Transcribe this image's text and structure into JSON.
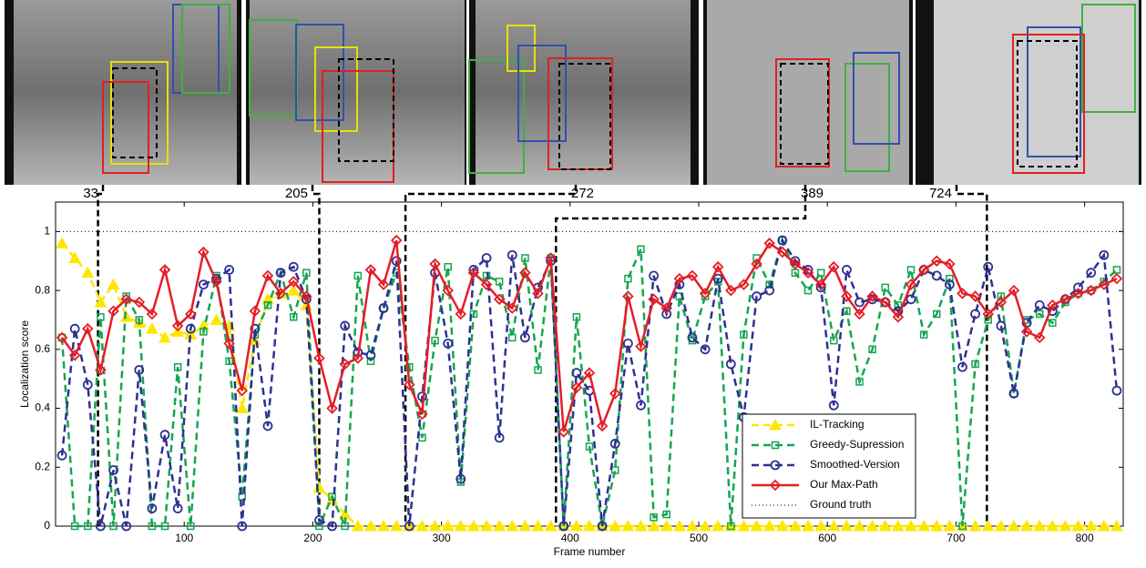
{
  "chart_data": {
    "type": "line",
    "xlabel": "Frame number",
    "ylabel": "Localization score",
    "x": [
      5,
      15,
      25,
      35,
      45,
      55,
      65,
      75,
      85,
      95,
      105,
      115,
      125,
      135,
      145,
      155,
      165,
      175,
      185,
      195,
      205,
      215,
      225,
      235,
      245,
      255,
      265,
      275,
      285,
      295,
      305,
      315,
      325,
      335,
      345,
      355,
      365,
      375,
      385,
      395,
      405,
      415,
      425,
      435,
      445,
      455,
      465,
      475,
      485,
      495,
      505,
      515,
      525,
      535,
      545,
      555,
      565,
      575,
      585,
      595,
      605,
      615,
      625,
      635,
      645,
      655,
      665,
      675,
      685,
      695,
      705,
      715,
      725,
      735,
      745,
      755,
      765,
      775,
      785,
      795,
      805,
      815,
      825
    ],
    "xlim": [
      0,
      830
    ],
    "ylim": [
      0,
      1.1
    ],
    "xticks": [
      100,
      200,
      300,
      400,
      500,
      600,
      700,
      800
    ],
    "yticks": [
      0,
      0.2,
      0.4,
      0.6,
      0.8,
      1
    ],
    "legend": "lower right",
    "frame_markers": [
      33,
      205,
      272,
      389,
      724
    ],
    "ground_truth": {
      "name": "Ground truth",
      "value": 1,
      "color": "#000000"
    },
    "series": [
      {
        "name": "IL-Tracking",
        "color": "#ffe600",
        "marker": "triangle",
        "dashed": true,
        "values": [
          0.96,
          0.91,
          0.86,
          0.76,
          0.82,
          0.71,
          0.69,
          0.67,
          0.64,
          0.66,
          0.65,
          0.68,
          0.7,
          0.68,
          0.4,
          0.63,
          0.77,
          0.79,
          0.8,
          0.75,
          0.13,
          0.09,
          0.04,
          0,
          0,
          0,
          0,
          0,
          0,
          0,
          0,
          0,
          0,
          0,
          0,
          0,
          0,
          0,
          0,
          0,
          0,
          0,
          0,
          0,
          0,
          0,
          0,
          0,
          0,
          0,
          0,
          0,
          0,
          0,
          0,
          0,
          0,
          0,
          0,
          0,
          0,
          0,
          0,
          0,
          0,
          0,
          0,
          0,
          0,
          0,
          0,
          0,
          0,
          0,
          0,
          0,
          0,
          0,
          0,
          0,
          0,
          0,
          0
        ]
      },
      {
        "name": "Greedy-Supression",
        "color": "#14a651",
        "marker": "square",
        "dashed": true,
        "values": [
          0.64,
          0,
          0,
          0.71,
          0,
          0.78,
          0.7,
          0,
          0,
          0.54,
          0,
          0.66,
          0.85,
          0.56,
          0.1,
          0.65,
          0.75,
          0.86,
          0.71,
          0.86,
          0,
          0.1,
          0,
          0.85,
          0.56,
          0.74,
          0.86,
          0.54,
          0.3,
          0.63,
          0.88,
          0.15,
          0.72,
          0.85,
          0.83,
          0.64,
          0.91,
          0.53,
          0.91,
          0,
          0.71,
          0.27,
          0,
          0.19,
          0.84,
          0.94,
          0.03,
          0.04,
          0.78,
          0.63,
          0.78,
          0.83,
          0,
          0.65,
          0.91,
          0.82,
          0.97,
          0.86,
          0.8,
          0.86,
          0.63,
          0.73,
          0.49,
          0.6,
          0.81,
          0.75,
          0.87,
          0.65,
          0.72,
          0.84,
          0,
          0.55,
          0.7,
          0.78,
          0.45,
          0.7,
          0.72,
          0.69,
          0.76,
          0.79,
          0.8,
          0.83,
          0.87
        ]
      },
      {
        "name": "Smoothed-Version",
        "color": "#2e3192",
        "marker": "circle",
        "dashed": true,
        "values": [
          0.24,
          0.67,
          0.48,
          0,
          0.19,
          0,
          0.53,
          0.06,
          0.31,
          0.06,
          0.67,
          0.82,
          0.84,
          0.87,
          0,
          0.67,
          0.34,
          0.86,
          0.88,
          0.77,
          0.02,
          0,
          0.68,
          0.59,
          0.58,
          0.74,
          0.9,
          0,
          0.44,
          0.86,
          0.62,
          0.16,
          0.87,
          0.91,
          0.3,
          0.92,
          0.64,
          0.81,
          0.9,
          0,
          0.52,
          0.46,
          0,
          0.28,
          0.62,
          0.41,
          0.85,
          0.72,
          0.82,
          0.64,
          0.6,
          0.84,
          0.55,
          0.37,
          0.78,
          0.8,
          0.97,
          0.9,
          0.87,
          0.81,
          0.41,
          0.87,
          0.76,
          0.77,
          0.76,
          0.73,
          0.77,
          0.87,
          0.85,
          0.82,
          0.54,
          0.72,
          0.88,
          0.68,
          0.45,
          0.69,
          0.75,
          0.73,
          0.77,
          0.81,
          0.86,
          0.92,
          0.46
        ]
      },
      {
        "name": "Our Max-Path",
        "color": "#e41e26",
        "marker": "diamond",
        "dashed": false,
        "values": [
          0.64,
          0.58,
          0.67,
          0.53,
          0.73,
          0.77,
          0.76,
          0.72,
          0.87,
          0.68,
          0.72,
          0.93,
          0.83,
          0.62,
          0.46,
          0.73,
          0.85,
          0.79,
          0.83,
          0.78,
          0.57,
          0.4,
          0.55,
          0.57,
          0.87,
          0.82,
          0.97,
          0.48,
          0.38,
          0.89,
          0.8,
          0.72,
          0.86,
          0.82,
          0.77,
          0.74,
          0.86,
          0.79,
          0.91,
          0.32,
          0.47,
          0.52,
          0.34,
          0.45,
          0.78,
          0.61,
          0.77,
          0.74,
          0.84,
          0.85,
          0.79,
          0.88,
          0.8,
          0.82,
          0.89,
          0.96,
          0.93,
          0.89,
          0.86,
          0.82,
          0.88,
          0.78,
          0.72,
          0.78,
          0.76,
          0.71,
          0.82,
          0.87,
          0.9,
          0.89,
          0.79,
          0.78,
          0.72,
          0.76,
          0.8,
          0.66,
          0.64,
          0.75,
          0.77,
          0.79,
          0.8,
          0.82,
          0.84
        ]
      }
    ]
  }
}
